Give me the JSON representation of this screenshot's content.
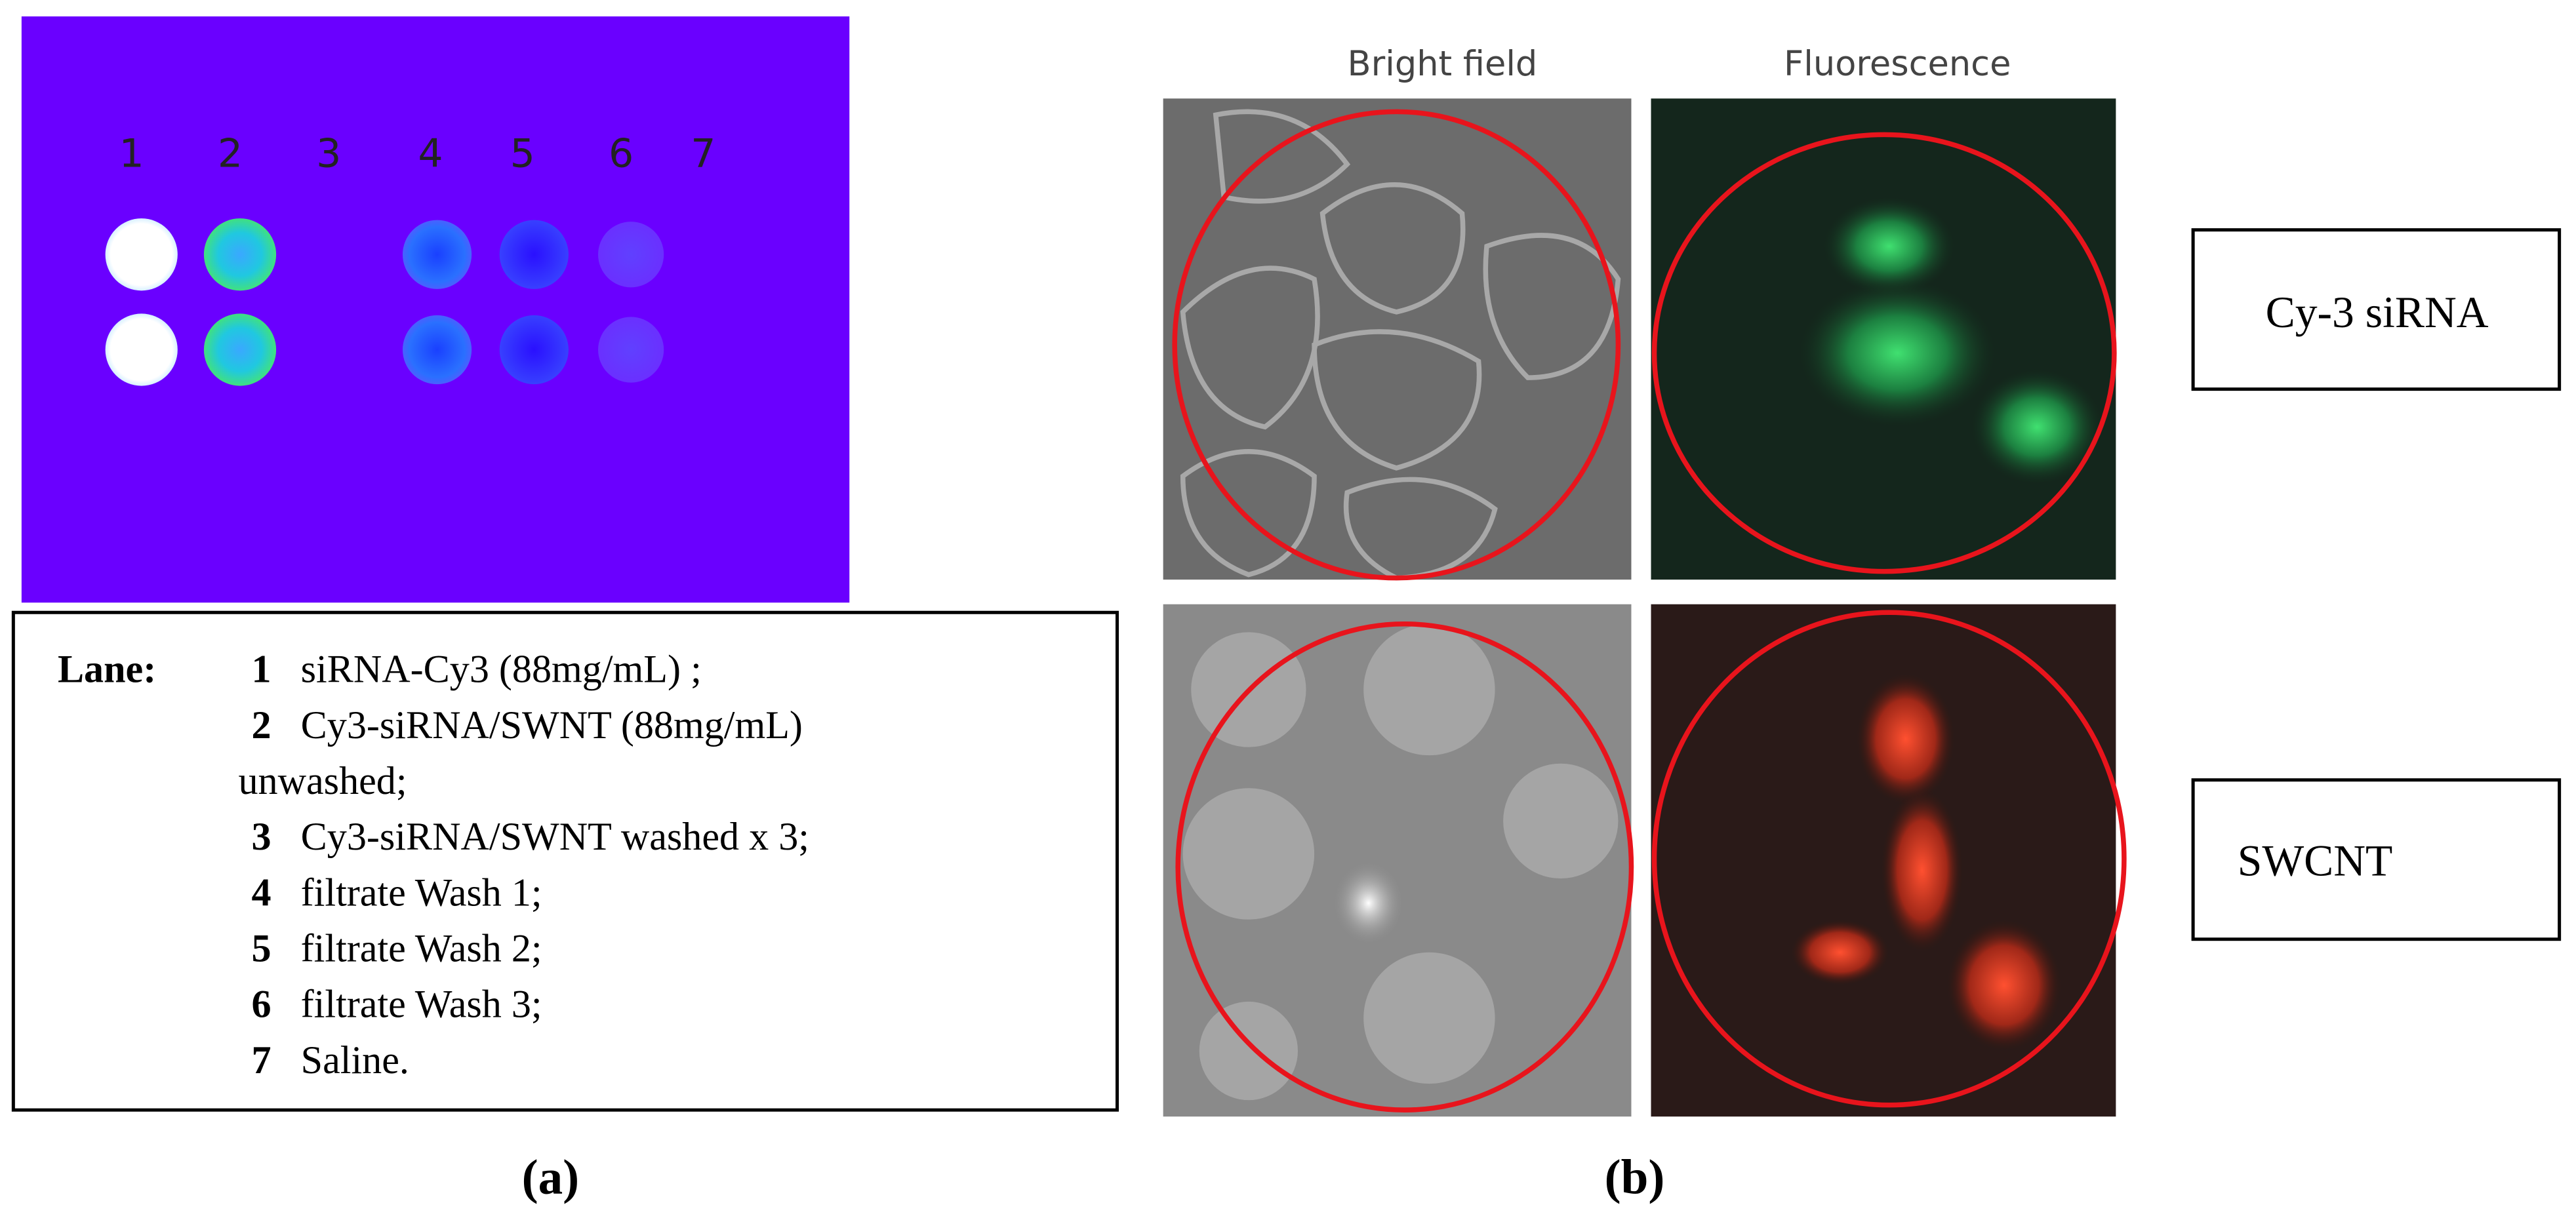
{
  "panel_a": {
    "lane_numbers": [
      "1",
      "2",
      "3",
      "4",
      "5",
      "6",
      "7"
    ],
    "legend": {
      "heading": "Lane:",
      "items": [
        {
          "number": "1",
          "lines": [
            "siRNA-Cy3 (88mg/mL) ;"
          ]
        },
        {
          "number": "2",
          "lines": [
            "Cy3-siRNA/SWNT (88mg/mL)",
            "unwashed;"
          ]
        },
        {
          "number": "3",
          "lines": [
            "Cy3-siRNA/SWNT washed x 3;"
          ]
        },
        {
          "number": "4",
          "lines": [
            "filtrate Wash  1;"
          ]
        },
        {
          "number": "5",
          "lines": [
            "filtrate Wash  2;"
          ]
        },
        {
          "number": "6",
          "lines": [
            "filtrate Wash  3;"
          ]
        },
        {
          "number": "7",
          "lines": [
            "Saline."
          ]
        }
      ]
    },
    "label": "(a)"
  },
  "panel_b": {
    "column_headers": [
      "Bright field",
      "Fluorescence"
    ],
    "row_labels": [
      "Cy-3 siRNA",
      "SWCNT"
    ],
    "label": "(b)"
  }
}
